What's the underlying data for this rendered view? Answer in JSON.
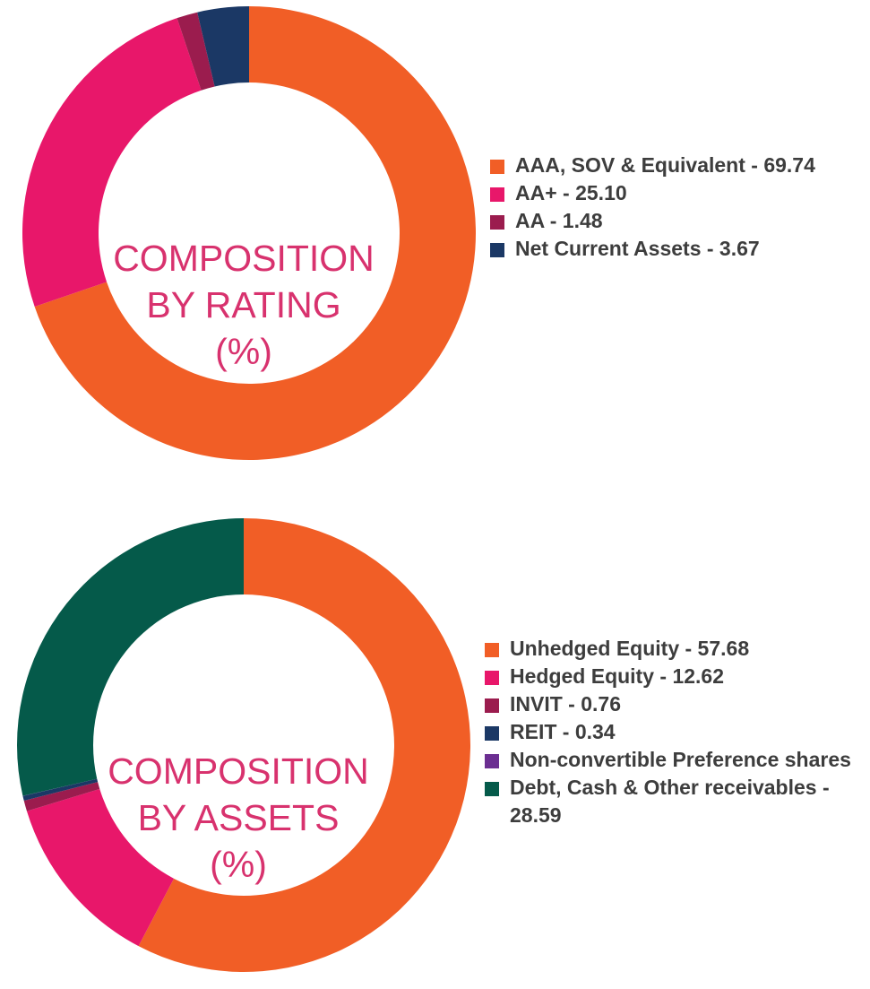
{
  "colors": {
    "orange": "#f15e26",
    "pink": "#e8176a",
    "maroon": "#9b1c4e",
    "navy": "#1b3865",
    "purple": "#6b2e91",
    "green": "#055a4a",
    "title_pink": "#d8326e",
    "legend_text": "#3d3d3d"
  },
  "chart_data": [
    {
      "type": "pie",
      "style": "donut",
      "center_label": [
        "COMPOSITION",
        "BY RATING",
        "(%)"
      ],
      "labels": [
        "AAA, SOV & Equivalent",
        "AA+",
        "AA",
        "Net Current Assets"
      ],
      "values": [
        69.74,
        25.1,
        1.48,
        3.67
      ],
      "legend_text": [
        "AAA, SOV & Equivalent - 69.74",
        "AA+ - 25.10",
        "AA - 1.48",
        "Net Current Assets - 3.67"
      ],
      "slice_colors": [
        "#f15e26",
        "#e8176a",
        "#9b1c4e",
        "#1b3865"
      ],
      "legend_position": "right",
      "start": "12 o'clock",
      "direction": "clockwise"
    },
    {
      "type": "pie",
      "style": "donut",
      "center_label": [
        "COMPOSITION",
        "BY ASSETS",
        "(%)"
      ],
      "labels": [
        "Unhedged Equity",
        "Hedged Equity",
        "INVIT",
        "REIT",
        "Non-convertible Preference shares",
        "Debt, Cash & Other receivables"
      ],
      "values": [
        57.68,
        12.62,
        0.76,
        0.34,
        0.01,
        28.59
      ],
      "legend_text": [
        "Unhedged Equity - 57.68",
        "Hedged Equity - 12.62",
        "INVIT - 0.76",
        "REIT - 0.34",
        "Non-convertible Preference shares",
        "Debt, Cash & Other receivables - 28.59"
      ],
      "slice_colors": [
        "#f15e26",
        "#e8176a",
        "#9b1c4e",
        "#1b3865",
        "#6b2e91",
        "#055a4a"
      ],
      "legend_position": "right",
      "start": "12 o'clock",
      "direction": "clockwise"
    }
  ]
}
